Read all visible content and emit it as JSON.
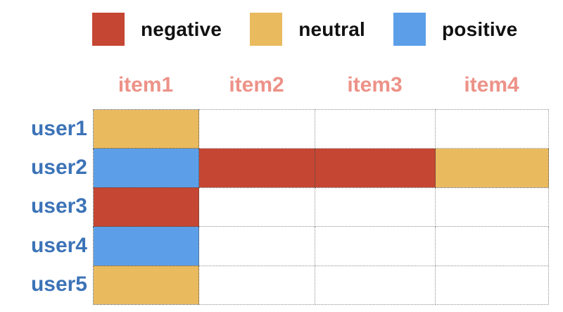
{
  "colors": {
    "negative": "#c54632",
    "neutral": "#eaba5e",
    "positive": "#5c9fe8",
    "item-label": "#ed9288",
    "user-label": "#3c73b7",
    "grid-line": "#909090"
  },
  "chart_data": {
    "type": "heatmap",
    "title": "",
    "x_categories": [
      "item1",
      "item2",
      "item3",
      "item4"
    ],
    "y_categories": [
      "user1",
      "user2",
      "user3",
      "user4",
      "user5"
    ],
    "values": [
      [
        "neutral",
        "none",
        "none",
        "none"
      ],
      [
        "positive",
        "negative",
        "negative",
        "neutral"
      ],
      [
        "negative",
        "none",
        "none",
        "none"
      ],
      [
        "positive",
        "none",
        "none",
        "none"
      ],
      [
        "neutral",
        "none",
        "none",
        "none"
      ]
    ],
    "legend": [
      {
        "key": "negative",
        "label": "negative",
        "color": "#c54632"
      },
      {
        "key": "neutral",
        "label": "neutral",
        "color": "#eaba5e"
      },
      {
        "key": "positive",
        "label": "positive",
        "color": "#5c9fe8"
      }
    ],
    "legend_position": "top",
    "grid": true,
    "grid_line_style": "dotted"
  }
}
